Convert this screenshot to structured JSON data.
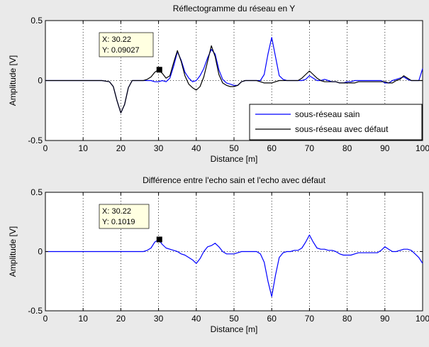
{
  "chart_data": [
    {
      "type": "line",
      "title": "Réflectogramme du réseau en Y",
      "xlabel": "Distance [m]",
      "ylabel": "Amplitude [V]",
      "xlim": [
        0,
        100
      ],
      "ylim": [
        -0.5,
        0.5
      ],
      "xticks": [
        "0",
        "10",
        "20",
        "30",
        "40",
        "50",
        "60",
        "70",
        "80",
        "90",
        "100"
      ],
      "yticks": [
        "-0.5",
        "0",
        "0.5"
      ],
      "grid": "vertical dotted",
      "legend_position": "bottom-right",
      "series": [
        {
          "name": "sous-réseau sain",
          "color": "#0000ff",
          "x": [
            0,
            15,
            17,
            18,
            19,
            20,
            21,
            22,
            23,
            24,
            25,
            26,
            27,
            28,
            29,
            30,
            31,
            32,
            33,
            34,
            35,
            36,
            37,
            38,
            39,
            40,
            41,
            42,
            43,
            44,
            45,
            46,
            47,
            48,
            49,
            50,
            51,
            52,
            53,
            54,
            55,
            56,
            57,
            58,
            59,
            60,
            61,
            62,
            63,
            64,
            65,
            66,
            67,
            68,
            69,
            70,
            71,
            72,
            73,
            74,
            75,
            76,
            77,
            78,
            79,
            80,
            81,
            82,
            83,
            84,
            85,
            86,
            87,
            88,
            89,
            90,
            91,
            92,
            93,
            94,
            95,
            96,
            97,
            98,
            99,
            100
          ],
          "y": [
            0,
            0,
            -0.01,
            -0.05,
            -0.17,
            -0.27,
            -0.2,
            -0.06,
            0,
            0,
            0,
            0,
            0,
            0,
            -0.01,
            -0.01,
            0,
            -0.01,
            0.02,
            0.12,
            0.24,
            0.17,
            0.07,
            0.02,
            -0.01,
            0.0,
            0.04,
            0.1,
            0.19,
            0.26,
            0.22,
            0.09,
            0.01,
            -0.02,
            -0.03,
            -0.04,
            -0.04,
            -0.01,
            0.0,
            0.0,
            0.0,
            0.0,
            0.0,
            0.05,
            0.22,
            0.36,
            0.2,
            0.04,
            0.01,
            0.0,
            0.0,
            0.0,
            0.0,
            0.0,
            0.01,
            0.04,
            0.02,
            0.0,
            0.0,
            0.01,
            0.0,
            -0.01,
            -0.01,
            -0.02,
            -0.02,
            -0.01,
            -0.01,
            0.0,
            0.0,
            0.0,
            0.0,
            0.0,
            0.0,
            0.0,
            0.0,
            -0.02,
            -0.02,
            0.0,
            0.01,
            0.02,
            0.03,
            0.01,
            0.0,
            0.0,
            0.0,
            0.1
          ]
        },
        {
          "name": "sous-réseau avec défaut",
          "color": "#000000",
          "x": [
            0,
            15,
            17,
            18,
            19,
            20,
            21,
            22,
            23,
            24,
            25,
            26,
            27,
            28,
            29,
            30,
            31,
            32,
            33,
            34,
            35,
            36,
            37,
            38,
            39,
            40,
            41,
            42,
            43,
            44,
            45,
            46,
            47,
            48,
            49,
            50,
            51,
            52,
            53,
            54,
            55,
            56,
            57,
            58,
            59,
            60,
            61,
            62,
            63,
            64,
            65,
            66,
            67,
            68,
            69,
            70,
            71,
            72,
            73,
            74,
            75,
            76,
            77,
            78,
            79,
            80,
            81,
            82,
            83,
            84,
            85,
            86,
            87,
            88,
            89,
            90,
            91,
            92,
            93,
            94,
            95,
            96,
            97,
            98,
            99,
            100
          ],
          "y": [
            0,
            0,
            -0.01,
            -0.05,
            -0.17,
            -0.27,
            -0.2,
            -0.06,
            0,
            0,
            0,
            0,
            0.01,
            0.03,
            0.07,
            0.09,
            0.06,
            0.02,
            0.04,
            0.15,
            0.25,
            0.16,
            0.04,
            -0.03,
            -0.06,
            -0.08,
            -0.05,
            0.03,
            0.16,
            0.29,
            0.2,
            0.05,
            -0.02,
            -0.04,
            -0.05,
            -0.05,
            -0.04,
            -0.01,
            0.0,
            0.0,
            0.0,
            0.0,
            -0.01,
            -0.02,
            -0.02,
            -0.02,
            -0.01,
            0.0,
            0.0,
            0.0,
            0.0,
            0.0,
            0.0,
            0.02,
            0.05,
            0.08,
            0.05,
            0.02,
            0.0,
            -0.01,
            -0.01,
            -0.01,
            -0.01,
            -0.02,
            -0.02,
            -0.02,
            -0.02,
            -0.02,
            -0.01,
            -0.01,
            -0.01,
            -0.01,
            -0.01,
            -0.01,
            -0.01,
            -0.01,
            -0.02,
            -0.02,
            0.0,
            0.01,
            0.04,
            0.02,
            0.0,
            0.0,
            0.0,
            0.0
          ]
        }
      ],
      "annotations": [
        {
          "x": 30.22,
          "y": 0.09027,
          "line1": "X: 30.22",
          "line2": "Y: 0.09027"
        }
      ]
    },
    {
      "type": "line",
      "title": "Différence entre l'echo sain et l'echo avec défaut",
      "xlabel": "Distance [m]",
      "ylabel": "Amplitude [V]",
      "xlim": [
        0,
        100
      ],
      "ylim": [
        -0.5,
        0.5
      ],
      "xticks": [
        "0",
        "10",
        "20",
        "30",
        "40",
        "50",
        "60",
        "70",
        "80",
        "90",
        "100"
      ],
      "yticks": [
        "-0.5",
        "0",
        "0.5"
      ],
      "grid": "vertical dotted",
      "series": [
        {
          "color": "#0000ff",
          "x": [
            0,
            26,
            27,
            28,
            29,
            30,
            31,
            32,
            33,
            34,
            35,
            36,
            37,
            38,
            39,
            40,
            41,
            42,
            43,
            44,
            45,
            46,
            47,
            48,
            49,
            50,
            51,
            52,
            53,
            54,
            55,
            56,
            57,
            58,
            59,
            60,
            61,
            62,
            63,
            64,
            65,
            66,
            67,
            68,
            69,
            70,
            71,
            72,
            73,
            74,
            75,
            76,
            77,
            78,
            79,
            80,
            81,
            82,
            83,
            84,
            85,
            86,
            87,
            88,
            89,
            90,
            91,
            92,
            93,
            94,
            95,
            96,
            97,
            98,
            99,
            100
          ],
          "y": [
            0,
            0,
            0.01,
            0.03,
            0.08,
            0.1,
            0.06,
            0.03,
            0.02,
            0.01,
            0.0,
            -0.02,
            -0.03,
            -0.05,
            -0.07,
            -0.1,
            -0.06,
            0.0,
            0.04,
            0.05,
            0.07,
            0.04,
            0.0,
            -0.02,
            -0.02,
            -0.02,
            -0.01,
            0.0,
            0.0,
            0.0,
            0.0,
            0.0,
            -0.02,
            -0.09,
            -0.25,
            -0.38,
            -0.2,
            -0.05,
            -0.01,
            0.0,
            0.0,
            0.01,
            0.01,
            0.03,
            0.08,
            0.14,
            0.08,
            0.03,
            0.02,
            0.02,
            0.01,
            0.01,
            0.0,
            -0.02,
            -0.03,
            -0.03,
            -0.03,
            -0.02,
            -0.01,
            -0.01,
            -0.01,
            -0.01,
            -0.01,
            -0.01,
            0.01,
            0.04,
            0.02,
            0.0,
            0.0,
            0.01,
            0.02,
            0.02,
            0.01,
            -0.02,
            -0.05,
            -0.1
          ]
        }
      ],
      "annotations": [
        {
          "x": 30.22,
          "y": 0.1019,
          "line1": "X: 30.22",
          "line2": "Y: 0.1019"
        }
      ]
    }
  ]
}
